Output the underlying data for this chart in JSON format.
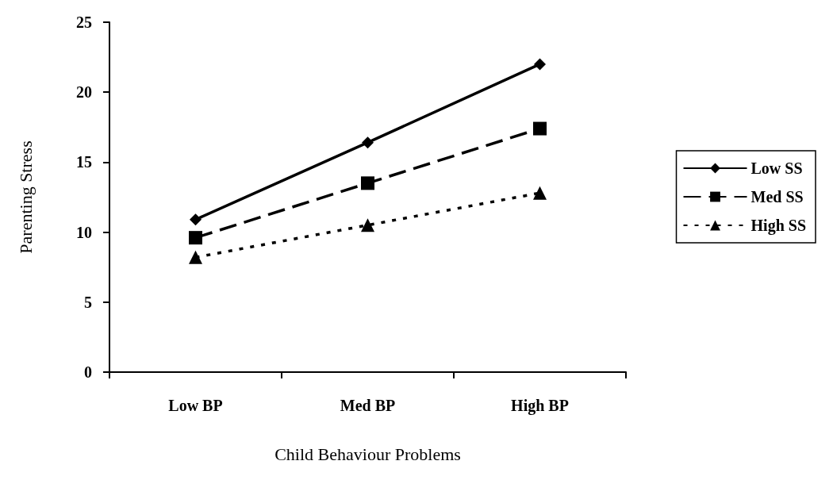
{
  "chart_data": {
    "type": "line",
    "xlabel": "Child Behaviour Problems",
    "ylabel": "Parenting Stress",
    "categories": [
      "Low BP",
      "Med BP",
      "High BP"
    ],
    "series": [
      {
        "name": "Low SS",
        "color": "#000000",
        "values": [
          10.9,
          16.4,
          22.0
        ],
        "marker": "diamond",
        "line_style": "solid"
      },
      {
        "name": "Med SS",
        "color": "#000000",
        "values": [
          9.6,
          13.5,
          17.4
        ],
        "marker": "square",
        "line_style": "dashed"
      },
      {
        "name": "High SS",
        "color": "#000000",
        "values": [
          8.2,
          10.5,
          12.8
        ],
        "marker": "triangle",
        "line_style": "dotted"
      }
    ],
    "ylim": [
      0,
      25
    ],
    "yticks": [
      0,
      5,
      10,
      15,
      20,
      25
    ],
    "grid": false,
    "legend": "right"
  }
}
